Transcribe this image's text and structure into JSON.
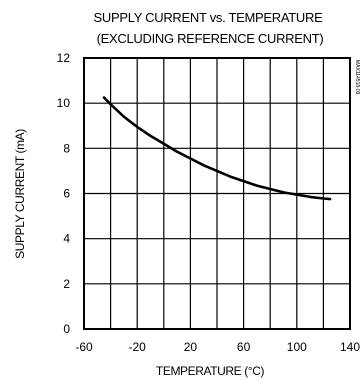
{
  "chart_data": {
    "type": "line",
    "title": "SUPPLY CURRENT vs. TEMPERATURE",
    "subtitle": "(EXCLUDING REFERENCE CURRENT)",
    "xlabel": "TEMPERATURE (°C)",
    "ylabel": "SUPPLY CURRENT (mA)",
    "xlim": [
      -60,
      140
    ],
    "ylim": [
      0,
      12
    ],
    "x_ticks": [
      "-60",
      "-20",
      "20",
      "60",
      "100",
      "140"
    ],
    "y_ticks": [
      "0",
      "2",
      "4",
      "6",
      "8",
      "10",
      "12"
    ],
    "x_grid": [
      -60,
      -40,
      -20,
      0,
      20,
      40,
      60,
      80,
      100,
      120,
      140
    ],
    "y_grid": [
      0,
      2,
      4,
      6,
      8,
      10,
      12
    ],
    "grid": true,
    "side_code": "MAX114518-09",
    "series": [
      {
        "x": [
          -45,
          -40,
          -30,
          -20,
          -10,
          0,
          10,
          20,
          30,
          40,
          50,
          60,
          70,
          80,
          90,
          100,
          110,
          120,
          125
        ],
        "y": [
          10.25,
          9.95,
          9.4,
          8.95,
          8.55,
          8.2,
          7.85,
          7.55,
          7.25,
          7.0,
          6.75,
          6.55,
          6.35,
          6.2,
          6.05,
          5.95,
          5.85,
          5.78,
          5.75
        ]
      }
    ],
    "line_color": "#000000"
  }
}
